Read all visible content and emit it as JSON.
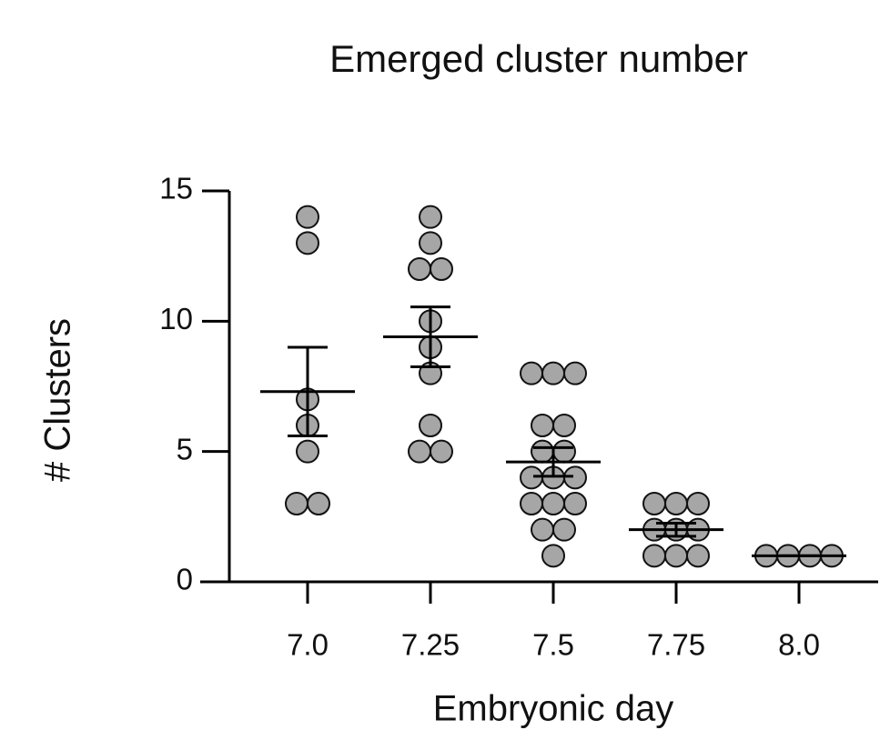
{
  "chart_data": {
    "type": "dot",
    "title": "Emerged cluster number",
    "x_label": "Embryonic day",
    "y_label": "# Clusters",
    "categories": [
      "7.0",
      "7.25",
      "7.5",
      "7.75",
      "8.0"
    ],
    "points": [
      [
        14,
        13,
        7,
        6,
        5,
        3,
        3
      ],
      [
        14,
        13,
        12,
        12,
        10,
        9,
        8,
        6,
        5,
        5
      ],
      [
        8,
        8,
        8,
        6,
        6,
        5,
        5,
        4,
        4,
        4,
        3,
        3,
        3,
        2,
        2,
        1
      ],
      [
        3,
        3,
        3,
        2,
        2,
        2,
        1,
        1,
        1
      ],
      [
        1,
        1,
        1,
        1
      ]
    ],
    "means": [
      7.3,
      9.4,
      4.6,
      2.0,
      1.0
    ],
    "sem": [
      1.7,
      1.15,
      0.55,
      0.25,
      0
    ],
    "color": "#a6a6a6",
    "ylim": [
      0,
      15
    ],
    "yticks": [
      0,
      5,
      10,
      15
    ]
  }
}
